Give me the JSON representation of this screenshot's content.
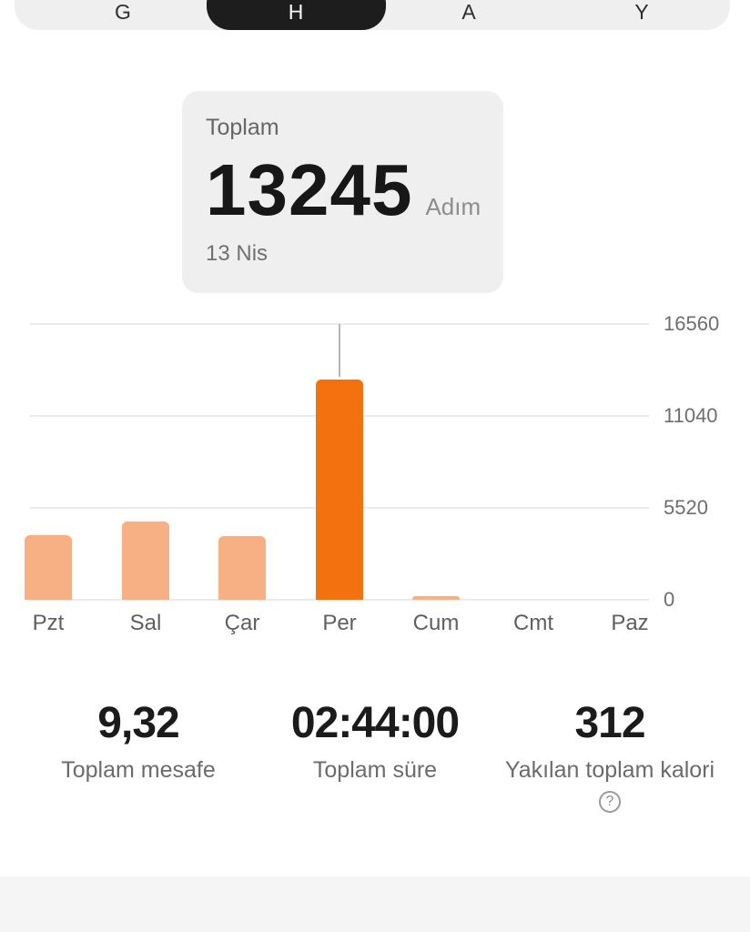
{
  "tabs": {
    "items": [
      {
        "label": "G",
        "selected": false
      },
      {
        "label": "H",
        "selected": true
      },
      {
        "label": "A",
        "selected": false
      },
      {
        "label": "Y",
        "selected": false
      }
    ]
  },
  "summary_card": {
    "label": "Toplam",
    "value": "13245",
    "unit": "Adım",
    "date": "13 Nis"
  },
  "chart_data": {
    "type": "bar",
    "title": "",
    "xlabel": "",
    "ylabel": "",
    "categories": [
      "Pzt",
      "Sal",
      "Çar",
      "Per",
      "Cum",
      "Cmt",
      "Paz"
    ],
    "values": [
      3900,
      4700,
      3850,
      13245,
      200,
      0,
      0
    ],
    "selected_index": 3,
    "selected_value_exact": 13245,
    "unit": "Adım",
    "y_ticks": [
      0,
      5520,
      11040,
      16560
    ],
    "ylim": [
      0,
      16560
    ],
    "grid": true,
    "axis_labels_side": "right",
    "legend": "none"
  },
  "stats": [
    {
      "value": "9,32",
      "label": "Toplam mesafe",
      "has_help": false
    },
    {
      "value": "02:44:00",
      "label": "Toplam süre",
      "has_help": false
    },
    {
      "value": "312",
      "label": "Yakılan toplam kalori",
      "has_help": true
    }
  ],
  "icons": {
    "help": "?"
  },
  "colors": {
    "accent_orange": "#f4710f",
    "bar_light": "#f6b083",
    "tab_bg": "#f0eff0",
    "tab_selected_bg": "#1d1d1d",
    "card_bg": "#efeff0",
    "bottom_bg": "#f5f5f6",
    "grid_line": "#ebebeb",
    "indicator_line": "#b5b5b5",
    "text_dark": "#171717",
    "text_gray": "#6b6b6b"
  }
}
